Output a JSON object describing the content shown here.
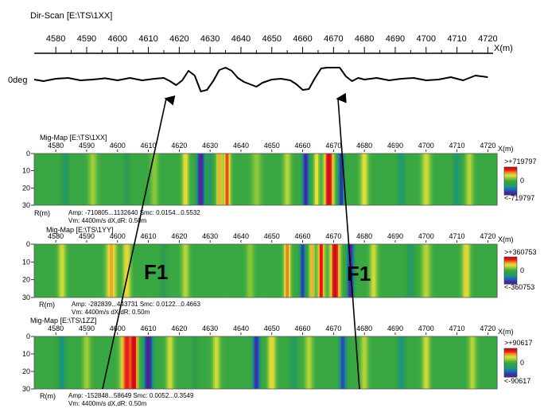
{
  "colors": {
    "colormap": [
      "#5a1f8a",
      "#2f3aa0",
      "#1b6ac8",
      "#1a9a7a",
      "#2f9e4a",
      "#39a842",
      "#8cc83a",
      "#e8e23a",
      "#f08a24",
      "#e4141a",
      "#c80d12"
    ],
    "axis": "#000000",
    "trace": "#000000",
    "arrow": "#000000"
  },
  "chart_data": [
    {
      "type": "line",
      "title": "Dir-Scan [E:\\TS\\1XX]",
      "xlabel": "X(m)",
      "trace_label": "0deg",
      "xlim": [
        4573,
        4723
      ],
      "xticks": [
        4580,
        4590,
        4600,
        4610,
        4620,
        4630,
        4640,
        4650,
        4660,
        4670,
        4680,
        4690,
        4700,
        4710,
        4720
      ],
      "series": [
        {
          "name": "0deg",
          "x": [
            4573,
            4576,
            4580,
            4584,
            4588,
            4592,
            4596,
            4600,
            4604,
            4608,
            4612,
            4615,
            4617,
            4619,
            4621,
            4623,
            4625,
            4627,
            4629,
            4631,
            4633,
            4635,
            4637,
            4639,
            4641,
            4643,
            4645,
            4647,
            4650,
            4653,
            4656,
            4658,
            4660,
            4662,
            4664,
            4666,
            4668,
            4670,
            4672,
            4674,
            4676,
            4678,
            4680,
            4684,
            4688,
            4692,
            4696,
            4700,
            4704,
            4708,
            4712,
            4716,
            4720
          ],
          "y": [
            0,
            -0.1,
            0.05,
            0.1,
            -0.05,
            0.0,
            0.08,
            -0.05,
            0.1,
            -0.05,
            0.05,
            0.1,
            -0.1,
            -0.35,
            -0.05,
            0.55,
            0.25,
            -0.75,
            -0.65,
            -0.1,
            0.6,
            0.75,
            0.55,
            0.1,
            -0.15,
            -0.3,
            -0.45,
            -0.2,
            0.0,
            0.05,
            -0.05,
            -0.3,
            -0.65,
            -0.6,
            0.1,
            0.7,
            0.75,
            0.75,
            0.75,
            0.2,
            -0.1,
            0.1,
            0.0,
            0.1,
            -0.05,
            0.05,
            0.1,
            -0.05,
            0.0,
            0.15,
            -0.05,
            0.25,
            0.15
          ]
        }
      ]
    },
    {
      "type": "heatmap",
      "title": "Mig-Map [E:\\TS\\1XX]",
      "xlabel": "X(m)",
      "ylabel": "R(m)",
      "xlim": [
        4573,
        4723
      ],
      "xticks": [
        4580,
        4590,
        4600,
        4610,
        4620,
        4630,
        4640,
        4650,
        4660,
        4670,
        4680,
        4690,
        4700,
        4710,
        4720
      ],
      "yticks": [
        0,
        10,
        20,
        30
      ],
      "ylim": [
        0,
        30
      ],
      "colorbar": {
        "top": ">+719797",
        "mid": "0",
        "bottom": "<-719797"
      },
      "info_line1": "Amp: -710805...1132640   Smc: 0.0154...0.5532",
      "info_line2": "Vm: 4400m/s   dX,dR: 0.50m",
      "features": [
        {
          "x": 4583,
          "v": -0.35,
          "w": 1.2
        },
        {
          "x": 4592,
          "v": 0.25,
          "w": 1.3
        },
        {
          "x": 4603,
          "v": -0.25,
          "w": 1.2
        },
        {
          "x": 4612,
          "v": 0.2,
          "w": 1.2
        },
        {
          "x": 4622,
          "v": 0.45,
          "w": 1.0
        },
        {
          "x": 4627,
          "v": -1.0,
          "w": 1.3
        },
        {
          "x": 4630,
          "v": -0.35,
          "w": 0.8
        },
        {
          "x": 4633,
          "v": 0.55,
          "w": 0.9
        },
        {
          "x": 4635.5,
          "v": 0.75,
          "w": 1.0
        },
        {
          "x": 4645,
          "v": 0.2,
          "w": 1.5
        },
        {
          "x": 4655,
          "v": 0.3,
          "w": 1.2
        },
        {
          "x": 4661,
          "v": -0.95,
          "w": 1.1
        },
        {
          "x": 4664.5,
          "v": 0.45,
          "w": 0.8
        },
        {
          "x": 4668.5,
          "v": 1.0,
          "w": 1.4
        },
        {
          "x": 4672.5,
          "v": -0.85,
          "w": 1.0
        },
        {
          "x": 4680,
          "v": 0.4,
          "w": 1.2
        },
        {
          "x": 4692,
          "v": -0.4,
          "w": 1.2
        },
        {
          "x": 4700,
          "v": 0.35,
          "w": 1.4
        },
        {
          "x": 4710,
          "v": -0.4,
          "w": 1.2
        },
        {
          "x": 4714,
          "v": 0.3,
          "w": 1.2
        }
      ]
    },
    {
      "type": "heatmap",
      "title": "Mig-Map [E:\\TS\\1YY]",
      "xlabel": "X(m)",
      "ylabel": "R(m)",
      "xlim": [
        4573,
        4723
      ],
      "xticks": [
        4580,
        4590,
        4600,
        4610,
        4620,
        4630,
        4640,
        4650,
        4660,
        4670,
        4680,
        4690,
        4700,
        4710,
        4720
      ],
      "yticks": [
        0,
        10,
        20,
        30
      ],
      "ylim": [
        0,
        30
      ],
      "colorbar": {
        "top": ">+360753",
        "mid": "0",
        "bottom": "<-360753"
      },
      "info_line1": "Amp: -282839...443731   Smc: 0.0122...0.4663",
      "info_line2": "Vm: 4400m/s   dX,dR: 0.50m",
      "fault_label": "F1",
      "features": [
        {
          "x": 4582,
          "v": 0.35,
          "w": 1.2
        },
        {
          "x": 4598,
          "v": 0.55,
          "w": 1.5
        },
        {
          "x": 4603,
          "v": 0.45,
          "w": 1.2
        },
        {
          "x": 4615,
          "v": -0.25,
          "w": 1.2
        },
        {
          "x": 4622,
          "v": 0.3,
          "w": 1.2
        },
        {
          "x": 4643,
          "v": 0.2,
          "w": 1.2
        },
        {
          "x": 4655,
          "v": 0.65,
          "w": 1.0
        },
        {
          "x": 4660,
          "v": -0.8,
          "w": 1.0
        },
        {
          "x": 4663,
          "v": 0.55,
          "w": 0.8
        },
        {
          "x": 4666,
          "v": 0.85,
          "w": 1.0
        },
        {
          "x": 4670.5,
          "v": 1.0,
          "w": 1.4
        },
        {
          "x": 4675.5,
          "v": -1.0,
          "w": 1.1
        },
        {
          "x": 4683,
          "v": 0.35,
          "w": 1.2
        },
        {
          "x": 4695,
          "v": -0.35,
          "w": 1.2
        },
        {
          "x": 4700,
          "v": 0.3,
          "w": 1.4
        },
        {
          "x": 4713,
          "v": 0.45,
          "w": 1.2
        }
      ]
    },
    {
      "type": "heatmap",
      "title": "Mig-Map [E:\\TS\\1ZZ]",
      "xlabel": "X(m)",
      "ylabel": "R(m)",
      "xlim": [
        4573,
        4723
      ],
      "xticks": [
        4580,
        4590,
        4600,
        4610,
        4620,
        4630,
        4640,
        4650,
        4660,
        4670,
        4680,
        4690,
        4700,
        4710,
        4720
      ],
      "yticks": [
        0,
        10,
        20,
        30
      ],
      "ylim": [
        0,
        30
      ],
      "colorbar": {
        "top": ">+90617",
        "mid": "0",
        "bottom": "<-90617"
      },
      "info_line1": "Amp: -152848...58649   Smc: 0.0052...0.3549",
      "info_line2": "Vm: 4400m/s   dX,dR: 0.50m",
      "features": [
        {
          "x": 4582,
          "v": -0.45,
          "w": 1.2
        },
        {
          "x": 4590,
          "v": 0.25,
          "w": 1.2
        },
        {
          "x": 4603,
          "v": 0.8,
          "w": 1.8
        },
        {
          "x": 4605.5,
          "v": 0.9,
          "w": 1.0
        },
        {
          "x": 4610,
          "v": -1.0,
          "w": 1.5
        },
        {
          "x": 4617,
          "v": 0.35,
          "w": 1.2
        },
        {
          "x": 4625,
          "v": -0.2,
          "w": 1.2
        },
        {
          "x": 4632,
          "v": 0.35,
          "w": 1.2
        },
        {
          "x": 4645,
          "v": -0.9,
          "w": 1.2
        },
        {
          "x": 4650,
          "v": 0.45,
          "w": 1.2
        },
        {
          "x": 4657,
          "v": -0.35,
          "w": 1.2
        },
        {
          "x": 4662,
          "v": 0.3,
          "w": 1.2
        },
        {
          "x": 4673,
          "v": -0.75,
          "w": 1.2
        },
        {
          "x": 4680,
          "v": 0.3,
          "w": 1.2
        },
        {
          "x": 4692,
          "v": -0.45,
          "w": 1.2
        },
        {
          "x": 4700,
          "v": 0.35,
          "w": 1.2
        },
        {
          "x": 4715,
          "v": 0.3,
          "w": 1.2
        }
      ]
    }
  ],
  "annotations": {
    "fault_label_left": "F1",
    "fault_label_right": "F1"
  }
}
